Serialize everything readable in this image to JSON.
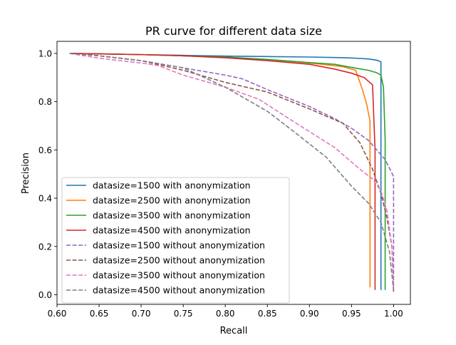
{
  "chart_data": {
    "type": "line",
    "title": "PR curve for different data size",
    "xlabel": "Recall",
    "ylabel": "Precision",
    "xlim": [
      0.6,
      1.02
    ],
    "ylim": [
      -0.04,
      1.05
    ],
    "xticks": [
      0.6,
      0.65,
      0.7,
      0.75,
      0.8,
      0.85,
      0.9,
      0.95,
      1.0
    ],
    "xtick_labels": [
      "0.60",
      "0.65",
      "0.70",
      "0.75",
      "0.80",
      "0.85",
      "0.90",
      "0.95",
      "1.00"
    ],
    "yticks": [
      0.0,
      0.2,
      0.4,
      0.6,
      0.8,
      1.0
    ],
    "ytick_labels": [
      "0.0",
      "0.2",
      "0.4",
      "0.6",
      "0.8",
      "1.0"
    ],
    "grid": false,
    "legend_position": "lower-left",
    "series": [
      {
        "name": "datasize=1500 with anonymization",
        "color": "#1f77b4",
        "style": "solid",
        "x": [
          0.615,
          0.65,
          0.7,
          0.75,
          0.8,
          0.85,
          0.9,
          0.93,
          0.95,
          0.97,
          0.98,
          0.985,
          0.985
        ],
        "y": [
          1.0,
          0.998,
          0.995,
          0.992,
          0.989,
          0.987,
          0.985,
          0.983,
          0.981,
          0.977,
          0.972,
          0.965,
          0.02
        ]
      },
      {
        "name": "datasize=2500 with anonymization",
        "color": "#ff7f0e",
        "style": "solid",
        "x": [
          0.615,
          0.65,
          0.7,
          0.75,
          0.8,
          0.85,
          0.9,
          0.92,
          0.94,
          0.955,
          0.963,
          0.968,
          0.972,
          0.972
        ],
        "y": [
          1.0,
          0.998,
          0.995,
          0.99,
          0.985,
          0.975,
          0.96,
          0.953,
          0.945,
          0.93,
          0.85,
          0.79,
          0.72,
          0.03
        ]
      },
      {
        "name": "datasize=3500 with anonymization",
        "color": "#2ca02c",
        "style": "solid",
        "x": [
          0.615,
          0.65,
          0.7,
          0.75,
          0.8,
          0.85,
          0.9,
          0.93,
          0.95,
          0.97,
          0.98,
          0.985,
          0.988,
          0.99,
          0.99
        ],
        "y": [
          1.0,
          0.998,
          0.995,
          0.99,
          0.985,
          0.975,
          0.962,
          0.955,
          0.942,
          0.93,
          0.92,
          0.91,
          0.86,
          0.64,
          0.02
        ]
      },
      {
        "name": "datasize=4500 with anonymization",
        "color": "#d62728",
        "style": "solid",
        "x": [
          0.615,
          0.65,
          0.7,
          0.75,
          0.8,
          0.85,
          0.9,
          0.93,
          0.95,
          0.965,
          0.975,
          0.978,
          0.978
        ],
        "y": [
          1.0,
          0.998,
          0.995,
          0.99,
          0.982,
          0.97,
          0.955,
          0.935,
          0.918,
          0.9,
          0.87,
          0.6,
          0.02
        ]
      },
      {
        "name": "datasize=1500 without anonymization",
        "color": "#9467bd",
        "style": "dashed",
        "x": [
          0.615,
          0.65,
          0.7,
          0.75,
          0.8,
          0.82,
          0.85,
          0.9,
          0.93,
          0.95,
          0.97,
          0.99,
          1.0,
          1.0
        ],
        "y": [
          1.0,
          0.99,
          0.97,
          0.94,
          0.91,
          0.895,
          0.85,
          0.78,
          0.73,
          0.69,
          0.64,
          0.56,
          0.49,
          0.02
        ]
      },
      {
        "name": "datasize=2500 without anonymization",
        "color": "#8c564b",
        "style": "dashed",
        "x": [
          0.615,
          0.65,
          0.7,
          0.75,
          0.8,
          0.85,
          0.9,
          0.94,
          0.96,
          0.975,
          0.985,
          0.992,
          0.998,
          1.0
        ],
        "y": [
          1.0,
          0.99,
          0.97,
          0.93,
          0.88,
          0.84,
          0.77,
          0.71,
          0.63,
          0.52,
          0.42,
          0.32,
          0.2,
          0.01
        ]
      },
      {
        "name": "datasize=3500 without anonymization",
        "color": "#e377c2",
        "style": "dashed",
        "x": [
          0.615,
          0.65,
          0.7,
          0.72,
          0.75,
          0.8,
          0.84,
          0.88,
          0.93,
          0.96,
          0.975,
          0.985,
          0.992,
          0.998,
          1.0
        ],
        "y": [
          1.0,
          0.98,
          0.96,
          0.95,
          0.91,
          0.86,
          0.81,
          0.72,
          0.61,
          0.52,
          0.48,
          0.43,
          0.35,
          0.2,
          0.02
        ]
      },
      {
        "name": "datasize=4500 without anonymization",
        "color": "#7f7f7f",
        "style": "dashed",
        "x": [
          0.615,
          0.65,
          0.7,
          0.75,
          0.8,
          0.85,
          0.88,
          0.92,
          0.95,
          0.97,
          0.985,
          0.995,
          1.0
        ],
        "y": [
          1.0,
          0.99,
          0.97,
          0.94,
          0.86,
          0.76,
          0.68,
          0.57,
          0.45,
          0.38,
          0.3,
          0.18,
          0.02
        ]
      }
    ]
  }
}
